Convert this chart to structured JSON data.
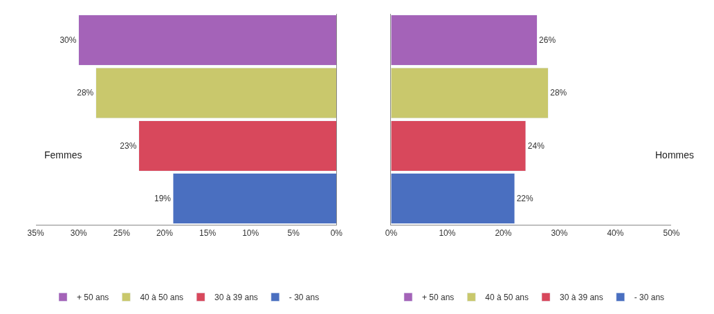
{
  "chart_data": [
    {
      "type": "bar",
      "orientation": "horizontal",
      "stacked": true,
      "categories": [
        null,
        null,
        null,
        null
      ],
      "series": [
        {
          "name": "+ 50 ans",
          "color": "#a463b8",
          "values": [
            30,
            null,
            null,
            null
          ],
          "value_labels": [
            "30%",
            null,
            null,
            null
          ]
        },
        {
          "name": "40 à 50 ans",
          "color": "#c9c86c",
          "values": [
            null,
            28,
            null,
            null
          ],
          "value_labels": [
            null,
            "28%",
            null,
            null
          ]
        },
        {
          "name": "30 à 39 ans",
          "color": "#d8485c",
          "values": [
            null,
            null,
            23,
            null
          ],
          "value_labels": [
            null,
            null,
            "23%",
            null
          ]
        },
        {
          "name": "- 30 ans",
          "color": "#4a6fc0",
          "values": [
            null,
            null,
            null,
            19
          ],
          "value_labels": [
            null,
            null,
            null,
            "19%"
          ]
        }
      ],
      "xlim": [
        35,
        0
      ],
      "xticks": [
        {
          "value": 35,
          "label": "35%"
        },
        {
          "value": 30,
          "label": "30%"
        },
        {
          "value": 25,
          "label": "25%"
        },
        {
          "value": 20,
          "label": "20%"
        },
        {
          "value": 15,
          "label": "15%"
        },
        {
          "value": 10,
          "label": "10%"
        },
        {
          "value": 5,
          "label": "5%"
        },
        {
          "value": 0,
          "label": "0%"
        }
      ],
      "annotations": [
        "Femmes"
      ],
      "legend": "bottom",
      "tick_labels": "x"
    },
    {
      "type": "bar",
      "orientation": "horizontal",
      "stacked": true,
      "categories": [
        null,
        null,
        null,
        null
      ],
      "series": [
        {
          "name": "+ 50 ans",
          "color": "#a463b8",
          "values": [
            26,
            null,
            null,
            null
          ],
          "value_labels": [
            "26%",
            null,
            null,
            null
          ]
        },
        {
          "name": "40 à 50 ans",
          "color": "#c9c86c",
          "values": [
            null,
            28,
            null,
            null
          ],
          "value_labels": [
            null,
            "28%",
            null,
            null
          ]
        },
        {
          "name": "30 à 39 ans",
          "color": "#d8485c",
          "values": [
            null,
            null,
            24,
            null
          ],
          "value_labels": [
            null,
            null,
            "24%",
            null
          ]
        },
        {
          "name": "- 30 ans",
          "color": "#4a6fc0",
          "values": [
            null,
            null,
            null,
            22
          ],
          "value_labels": [
            null,
            null,
            null,
            "22%"
          ]
        }
      ],
      "xlim": [
        0,
        50
      ],
      "xticks": [
        {
          "value": 0,
          "label": "0%"
        },
        {
          "value": 10,
          "label": "10%"
        },
        {
          "value": 20,
          "label": "20%"
        },
        {
          "value": 30,
          "label": "30%"
        },
        {
          "value": 40,
          "label": "40%"
        },
        {
          "value": 50,
          "label": "50%"
        }
      ],
      "annotations": [
        "Hommes"
      ],
      "legend": "bottom",
      "tick_labels": "x"
    }
  ]
}
